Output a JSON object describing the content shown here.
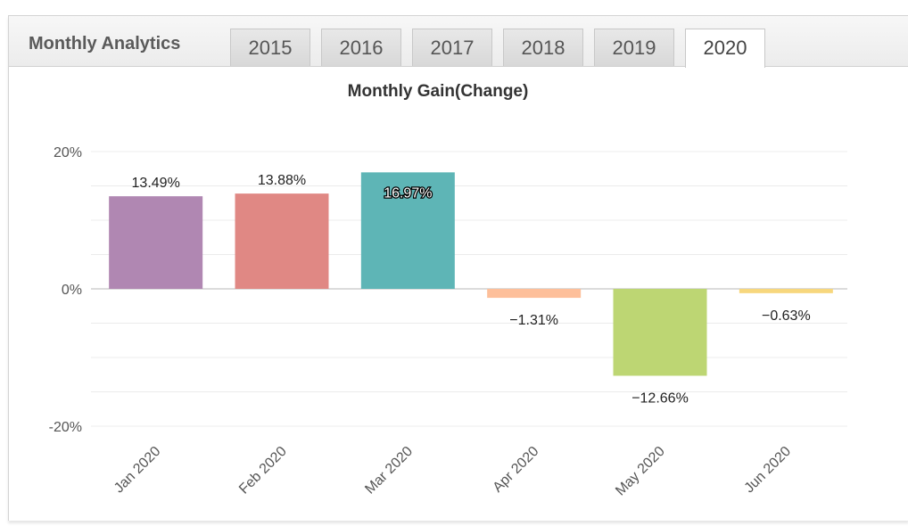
{
  "header": {
    "title": "Monthly Analytics",
    "tabs": [
      {
        "label": "2015",
        "active": false
      },
      {
        "label": "2016",
        "active": false
      },
      {
        "label": "2017",
        "active": false
      },
      {
        "label": "2018",
        "active": false
      },
      {
        "label": "2019",
        "active": false
      },
      {
        "label": "2020",
        "active": true
      }
    ]
  },
  "chart_data": {
    "type": "bar",
    "title": "Monthly Gain(Change)",
    "xlabel": "",
    "ylabel": "",
    "ylim": [
      -20,
      20
    ],
    "yticks": [
      "20%",
      "0%",
      "-20%"
    ],
    "grid": true,
    "legend": "none",
    "categories": [
      "Jan 2020",
      "Feb 2020",
      "Mar 2020",
      "Apr 2020",
      "May 2020",
      "Jun 2020"
    ],
    "values": [
      13.49,
      13.88,
      16.97,
      -1.31,
      -12.66,
      -0.63
    ],
    "data_labels": [
      "13.49%",
      "13.88%",
      "16.97%",
      "−1.31%",
      "−12.66%",
      "−0.63%"
    ],
    "colors": [
      "#b087b2",
      "#e08884",
      "#5eb5b6",
      "#fdbf9a",
      "#bdd673",
      "#f7d77d"
    ]
  }
}
